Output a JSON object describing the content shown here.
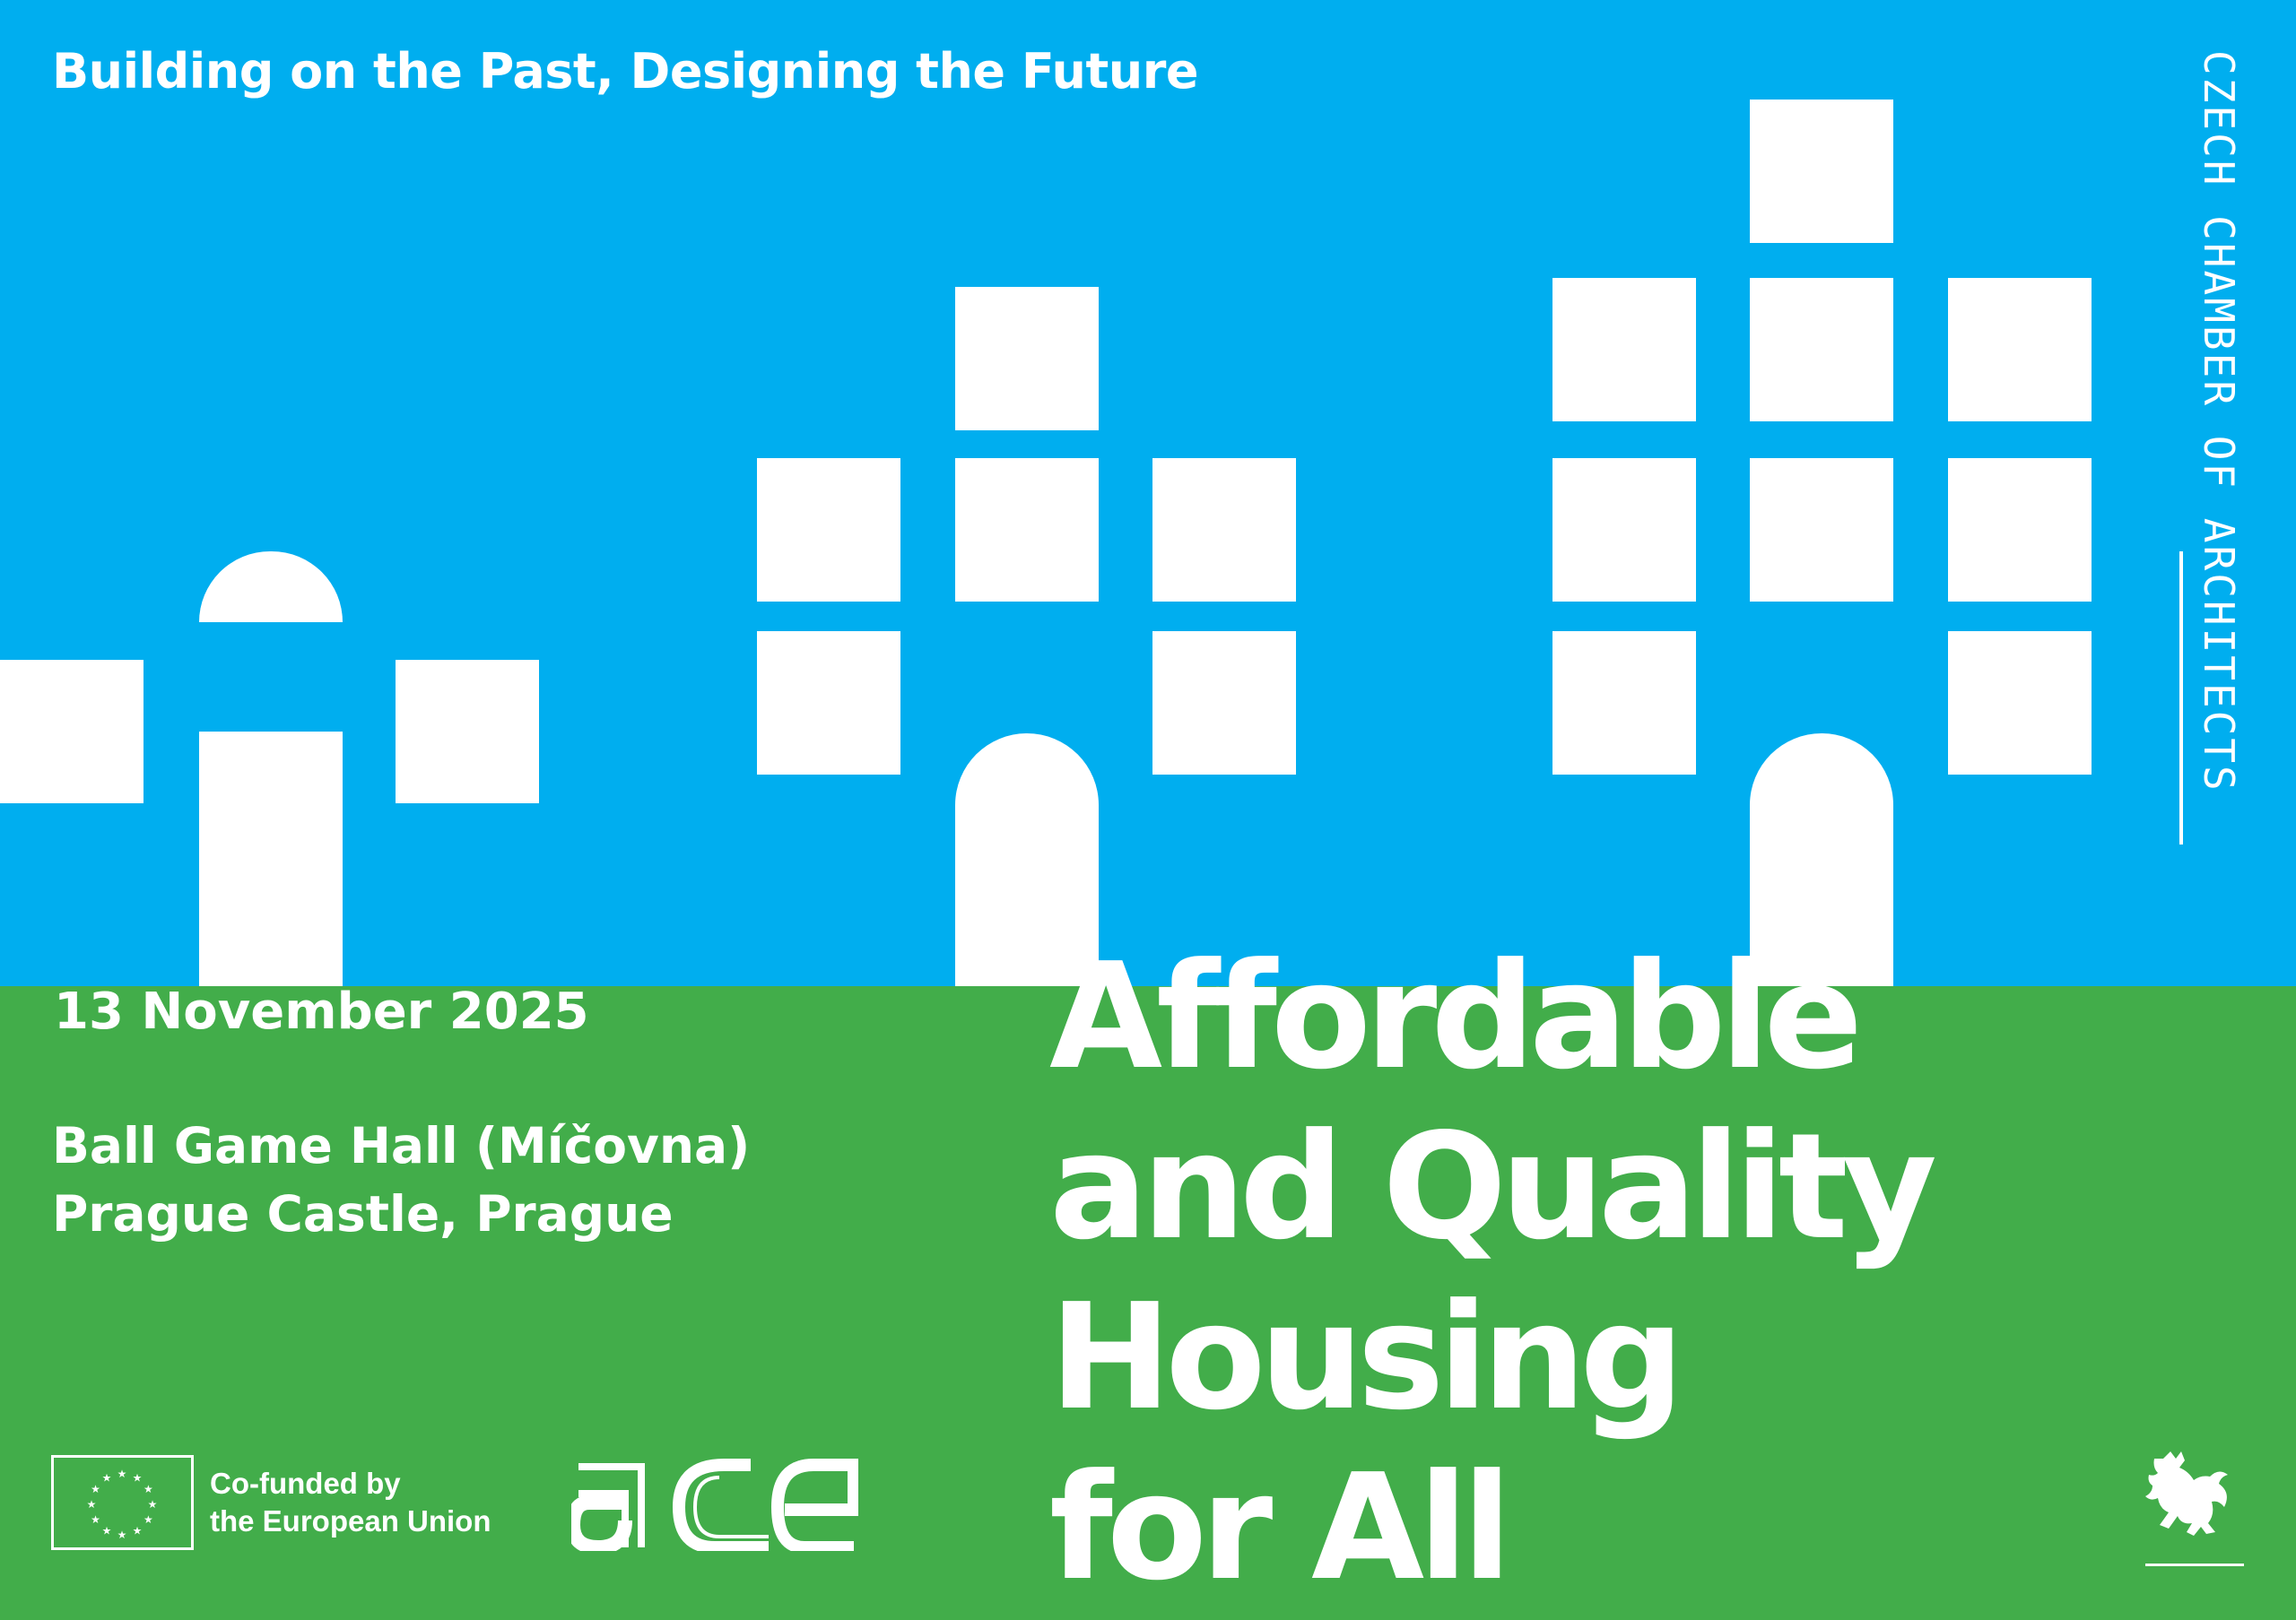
{
  "header": {
    "tagline": "Building on the Past, Designing the Future"
  },
  "side": {
    "organization": "CZECH CHAMBER OF ARCHITECTS"
  },
  "event": {
    "date": "13 November 2025",
    "venue_line1": "Ball Game Hall (Míčovna)",
    "venue_line2": "Prague Castle, Prague",
    "title_lines": [
      "Affordable",
      "and Quality",
      "Housing",
      "for All"
    ]
  },
  "footer": {
    "eu_line1": "Co-funded by",
    "eu_line2": "the European Union",
    "ace_logo": "ace"
  },
  "colors": {
    "sky": "#00AEEF",
    "ground": "#42AD4A",
    "shapes": "#FFFFFF"
  }
}
